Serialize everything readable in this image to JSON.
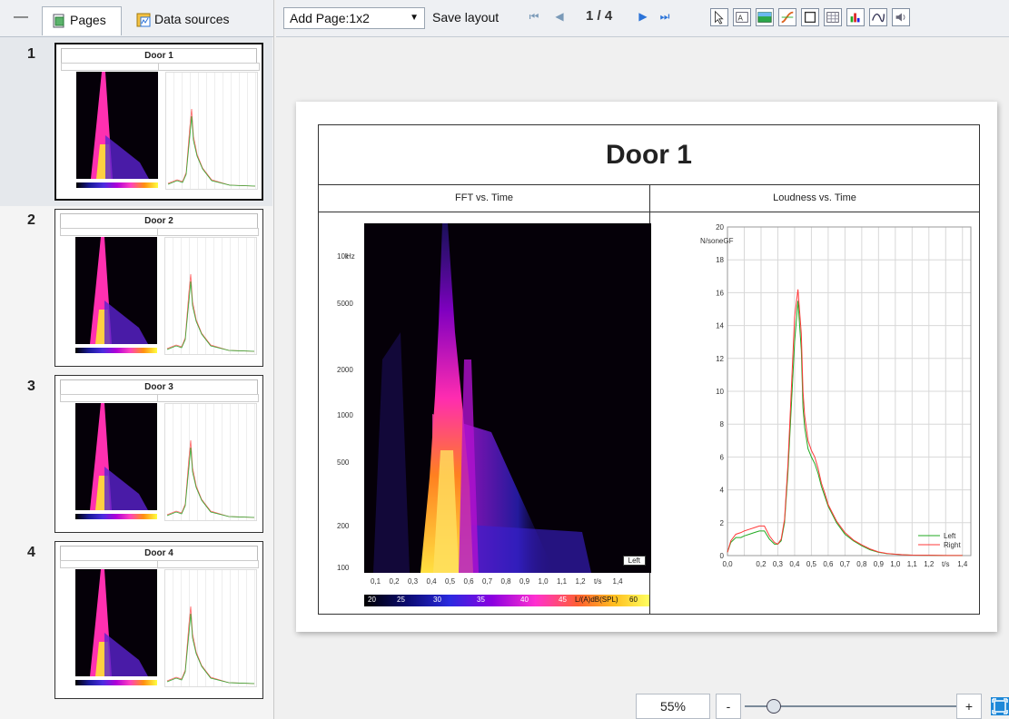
{
  "left_panel": {
    "tabs": [
      {
        "label": "Pages",
        "icon": "pages-icon",
        "active": true
      },
      {
        "label": "Data sources",
        "icon": "data-sources-icon",
        "active": false
      }
    ],
    "pages": [
      {
        "number": "1",
        "title": "Door 1",
        "selected": true
      },
      {
        "number": "2",
        "title": "Door 2",
        "selected": false
      },
      {
        "number": "3",
        "title": "Door 3",
        "selected": false
      },
      {
        "number": "4",
        "title": "Door 4",
        "selected": false
      }
    ]
  },
  "toolbar": {
    "add_page_label": "Add Page:",
    "add_page_value": "1x2",
    "save_layout_label": "Save layout",
    "page_indicator": "1 / 4",
    "tool_icons": [
      "pointer-icon",
      "text-box-icon",
      "image-icon",
      "curve-icon",
      "frame-icon",
      "table-icon",
      "bar-chart-icon",
      "signal-icon",
      "sound-icon"
    ]
  },
  "document": {
    "title": "Door 1",
    "left_panel_title": "FFT vs. Time",
    "right_panel_title": "Loudness vs. Time"
  },
  "chart_data": [
    {
      "type": "heatmap",
      "title": "FFT vs. Time",
      "y_unit": "Hz",
      "y_ticks": [
        "10k",
        "5000",
        "2000",
        "1000",
        "500",
        "200",
        "100"
      ],
      "x_ticks": [
        "0,1",
        "0,2",
        "0,3",
        "0,4",
        "0,5",
        "0,6",
        "0,7",
        "0,8",
        "0,9",
        "1,0",
        "1,1",
        "1,2",
        "t/s",
        "1,4"
      ],
      "colorbar_ticks": [
        "20",
        "25",
        "30",
        "35",
        "40",
        "45",
        "60"
      ],
      "colorbar_label": "L/(A)dB(SPL)",
      "legend": "Left"
    },
    {
      "type": "line",
      "title": "Loudness vs. Time",
      "ylabel": "N/soneGF",
      "y_ticks": [
        "0",
        "2",
        "4",
        "6",
        "8",
        "10",
        "12",
        "14",
        "16",
        "18",
        "20"
      ],
      "x_ticks": [
        "0,0",
        "0,2",
        "0,3",
        "0,4",
        "0,5",
        "0,6",
        "0,7",
        "0,8",
        "0,9",
        "1,0",
        "1,1",
        "1,2",
        "t/s",
        "1,4"
      ],
      "ylim": [
        0,
        20
      ],
      "xlim": [
        0,
        1.45
      ],
      "legend_placement": "bottom-right",
      "series": [
        {
          "name": "Left",
          "color": "#22aa22",
          "x": [
            0.0,
            0.02,
            0.05,
            0.08,
            0.1,
            0.13,
            0.16,
            0.19,
            0.22,
            0.25,
            0.28,
            0.3,
            0.32,
            0.34,
            0.36,
            0.38,
            0.4,
            0.42,
            0.44,
            0.45,
            0.46,
            0.48,
            0.5,
            0.52,
            0.54,
            0.56,
            0.58,
            0.6,
            0.65,
            0.7,
            0.75,
            0.8,
            0.85,
            0.9,
            0.95,
            1.0,
            1.05,
            1.1,
            1.2,
            1.3,
            1.4
          ],
          "y": [
            0.2,
            0.8,
            1.1,
            1.1,
            1.2,
            1.3,
            1.4,
            1.5,
            1.5,
            1.0,
            0.7,
            0.7,
            0.9,
            2.0,
            5.0,
            9.0,
            13.0,
            15.5,
            12.5,
            9.0,
            7.8,
            6.5,
            6.0,
            5.6,
            5.0,
            4.2,
            3.6,
            3.0,
            2.0,
            1.3,
            0.9,
            0.6,
            0.35,
            0.2,
            0.12,
            0.08,
            0.05,
            0.03,
            0.02,
            0.01,
            0.01
          ]
        },
        {
          "name": "Right",
          "color": "#ff3a3a",
          "x": [
            0.0,
            0.02,
            0.05,
            0.08,
            0.1,
            0.13,
            0.16,
            0.19,
            0.22,
            0.25,
            0.28,
            0.3,
            0.32,
            0.34,
            0.36,
            0.38,
            0.4,
            0.42,
            0.44,
            0.45,
            0.46,
            0.48,
            0.5,
            0.52,
            0.54,
            0.56,
            0.58,
            0.6,
            0.65,
            0.7,
            0.75,
            0.8,
            0.85,
            0.9,
            0.95,
            1.0,
            1.05,
            1.1,
            1.2,
            1.3,
            1.4
          ],
          "y": [
            0.2,
            0.9,
            1.3,
            1.4,
            1.5,
            1.6,
            1.7,
            1.8,
            1.8,
            1.2,
            0.8,
            0.7,
            1.0,
            2.2,
            5.5,
            10.0,
            14.5,
            16.2,
            13.5,
            10.0,
            8.5,
            7.0,
            6.4,
            6.0,
            5.3,
            4.4,
            3.8,
            3.1,
            2.1,
            1.4,
            0.95,
            0.65,
            0.4,
            0.22,
            0.13,
            0.08,
            0.05,
            0.03,
            0.02,
            0.01,
            0.01
          ]
        }
      ]
    }
  ],
  "zoom": {
    "value": "55%",
    "minus_label": "-",
    "plus_label": "+",
    "level": 0.55
  },
  "colors": {
    "accent": "#2b73d8",
    "selected_page_bg": "#e5e8ec"
  }
}
